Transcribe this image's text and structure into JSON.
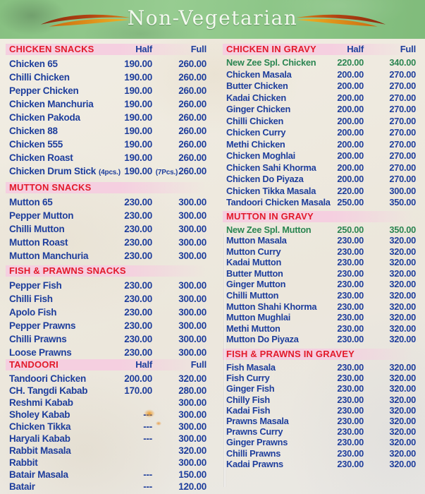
{
  "title": "Non-Vegetarian",
  "colors": {
    "header_green": "#8cc487",
    "band_pink": "#f5cfe0",
    "section_red": "#e21a2b",
    "item_blue": "#1e3e9c",
    "special_green": "#2b8551",
    "title_white": "#f3f9ef",
    "flourish_amber": "#eda61a",
    "flourish_brown": "#8a2a0c",
    "paper": "#f0ebe1"
  },
  "columns": {
    "left": {
      "sections": [
        {
          "name": "CHICKEN  SNACKS",
          "half_label": "Half",
          "full_label": "Full",
          "items": [
            {
              "name": "Chicken 65",
              "half": "190.00",
              "full": "260.00"
            },
            {
              "name": "Chilli Chicken",
              "half": "190.00",
              "full": "260.00"
            },
            {
              "name": "Pepper Chicken",
              "half": "190.00",
              "full": "260.00"
            },
            {
              "name": "Chicken Manchuria",
              "half": "190.00",
              "full": "260.00"
            },
            {
              "name": "Chicken Pakoda",
              "half": "190.00",
              "full": "260.00"
            },
            {
              "name": "Chicken 88",
              "half": "190.00",
              "full": "260.00"
            },
            {
              "name": "Chicken 555",
              "half": "190.00",
              "full": "260.00"
            },
            {
              "name": "Chicken Roast",
              "half": "190.00",
              "full": "260.00"
            },
            {
              "name": "Chicken Drum Stick",
              "name_note": "(4pcs.)",
              "half": "190.00",
              "full_note": "(7Pcs.)",
              "full": "260.00"
            }
          ]
        },
        {
          "name": "MUTTON SNACKS",
          "items": [
            {
              "name": "Mutton 65",
              "half": "230.00",
              "full": "300.00"
            },
            {
              "name": "Pepper Mutton",
              "half": "230.00",
              "full": "300.00"
            },
            {
              "name": "Chilli Mutton",
              "half": "230.00",
              "full": "300.00"
            },
            {
              "name": "Mutton Roast",
              "half": "230.00",
              "full": "300.00"
            },
            {
              "name": "Mutton Manchuria",
              "half": "230.00",
              "full": "300.00"
            }
          ]
        },
        {
          "name": "FISH & PRAWNS SNACKS",
          "items": [
            {
              "name": "Pepper Fish",
              "half": "230.00",
              "full": "300.00"
            },
            {
              "name": "Chilli Fish",
              "half": "230.00",
              "full": "300.00"
            },
            {
              "name": "Apolo Fish",
              "half": "230.00",
              "full": "300.00"
            },
            {
              "name": "Pepper Prawns",
              "half": "230.00",
              "full": "300.00"
            },
            {
              "name": "Chilli Prawns",
              "half": "230.00",
              "full": "300.00"
            },
            {
              "name": "Loose Prawns",
              "half": "230.00",
              "full": "300.00"
            }
          ]
        },
        {
          "name": "TANDOORI",
          "half_label": "Half",
          "full_label": "Full",
          "items": [
            {
              "name": "Tandoori Chicken",
              "half": "200.00",
              "full": "320.00"
            },
            {
              "name": "CH. Tangdi Kabab",
              "half": "170.00",
              "full": "280.00"
            },
            {
              "name": "Reshmi Kabab",
              "half": "",
              "full": "300.00"
            },
            {
              "name": "Sholey Kabab",
              "half": "---",
              "full": "300.00"
            },
            {
              "name": "Chicken Tikka",
              "half": "---",
              "full": "300.00"
            },
            {
              "name": "Haryali Kabab",
              "half": "---",
              "full": "300.00"
            },
            {
              "name": "Rabbit Masala",
              "half": "",
              "full": "320.00"
            },
            {
              "name": "Rabbit",
              "half": "",
              "full": "300.00"
            },
            {
              "name": "Batair Masala",
              "half": "---",
              "full": "150.00"
            },
            {
              "name": "Batair",
              "half": "---",
              "full": "120.00"
            }
          ]
        }
      ]
    },
    "right": {
      "sections": [
        {
          "name": "CHICKEN IN GRAVY",
          "half_label": "Half",
          "full_label": "Full",
          "items": [
            {
              "name": "New Zee  Spl. Chicken",
              "half": "220.00",
              "full": "340.00",
              "special": true
            },
            {
              "name": "Chicken Masala",
              "half": "200.00",
              "full": "270.00"
            },
            {
              "name": "Butter Chicken",
              "half": "200.00",
              "full": "270.00"
            },
            {
              "name": "Kadai Chicken",
              "half": "200.00",
              "full": "270.00"
            },
            {
              "name": "Ginger Chicken",
              "half": "200.00",
              "full": "270.00"
            },
            {
              "name": "Chilli Chicken",
              "half": "200.00",
              "full": "270.00"
            },
            {
              "name": "Chicken Curry",
              "half": "200.00",
              "full": "270.00"
            },
            {
              "name": "Methi Chicken",
              "half": "200.00",
              "full": "270.00"
            },
            {
              "name": "Chicken Moghlai",
              "half": "200.00",
              "full": "270.00"
            },
            {
              "name": "Chicken Sahi Khorma",
              "half": "200.00",
              "full": "270.00"
            },
            {
              "name": "Chicken Do Piyaza",
              "half": "200.00",
              "full": "270.00"
            },
            {
              "name": "Chicken Tikka Masala",
              "half": "220.00",
              "full": "300.00"
            },
            {
              "name": "Tandoori Chicken Masala",
              "half": "250.00",
              "full": "350.00"
            }
          ]
        },
        {
          "name": "MUTTON IN GRAVY",
          "items": [
            {
              "name": "New Zee  Spl. Mutton",
              "half": "250.00",
              "full": "350.00",
              "special": true
            },
            {
              "name": "Mutton Masala",
              "half": "230.00",
              "full": "320.00"
            },
            {
              "name": "Mutton Curry",
              "half": "230.00",
              "full": "320.00"
            },
            {
              "name": "Kadai Mutton",
              "half": "230.00",
              "full": "320.00"
            },
            {
              "name": "Butter Mutton",
              "half": "230.00",
              "full": "320.00"
            },
            {
              "name": "Ginger Mutton",
              "half": "230.00",
              "full": "320.00"
            },
            {
              "name": "Chilli Mutton",
              "half": "230.00",
              "full": "320.00"
            },
            {
              "name": "Mutton Shahi Khorma",
              "half": "230.00",
              "full": "320.00"
            },
            {
              "name": "Mutton Mughlai",
              "half": "230.00",
              "full": "320.00"
            },
            {
              "name": "Methi Mutton",
              "half": "230.00",
              "full": "320.00"
            },
            {
              "name": "Mutton Do Piyaza",
              "half": "230.00",
              "full": "320.00"
            }
          ]
        },
        {
          "name": "FISH & PRAWNS IN GRAVEY",
          "items": [
            {
              "name": "Fish Masala",
              "half": "230.00",
              "full": "320.00"
            },
            {
              "name": "Fish Curry",
              "half": "230.00",
              "full": "320.00"
            },
            {
              "name": "Ginger Fish",
              "half": "230.00",
              "full": "320.00"
            },
            {
              "name": "Chilly Fish",
              "half": "230.00",
              "full": "320.00"
            },
            {
              "name": "Kadai Fish",
              "half": "230.00",
              "full": "320.00"
            },
            {
              "name": "Prawns Masala",
              "half": "230.00",
              "full": "320.00"
            },
            {
              "name": "Prawns Curry",
              "half": "230.00",
              "full": "320.00"
            },
            {
              "name": "Ginger Prawns",
              "half": "230.00",
              "full": "320.00"
            },
            {
              "name": "Chilli Prawns",
              "half": "230.00",
              "full": "320.00"
            },
            {
              "name": "Kadai Prawns",
              "half": "230.00",
              "full": "320.00"
            }
          ]
        }
      ]
    }
  }
}
